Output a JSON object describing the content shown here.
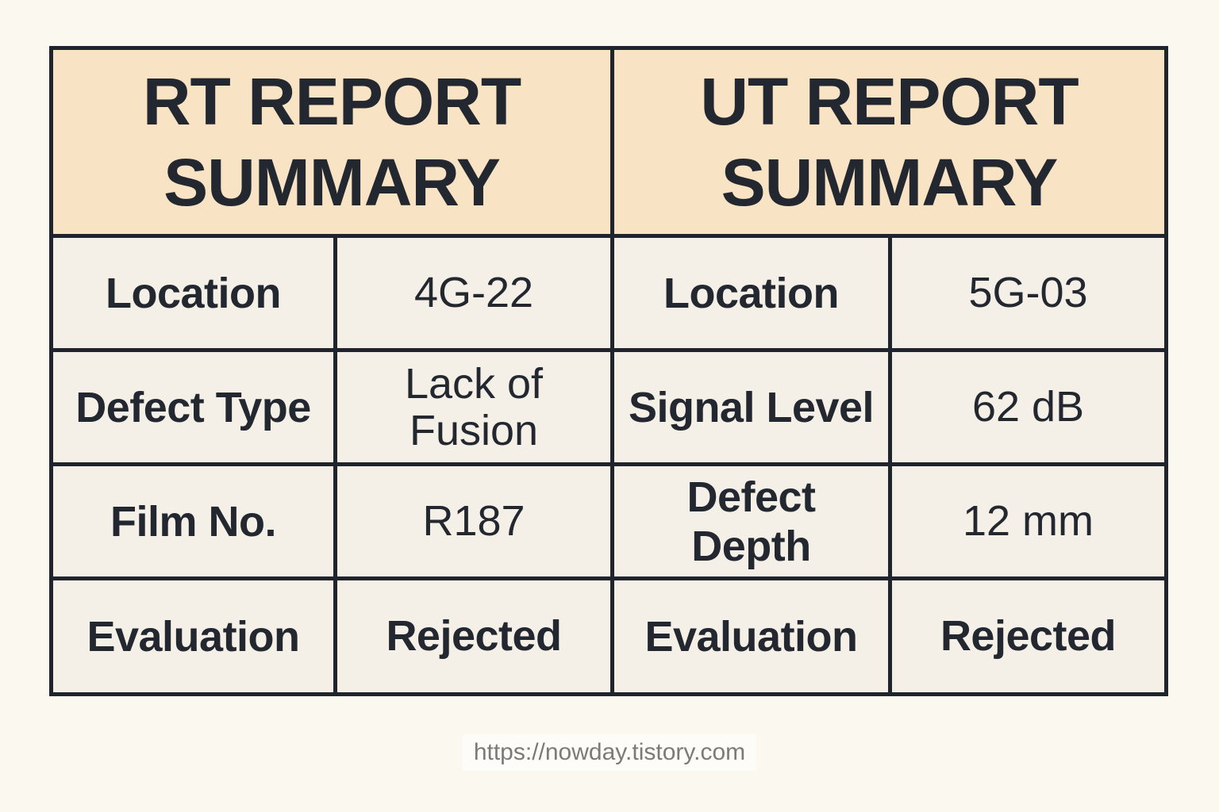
{
  "colors": {
    "page_background": "#fbf8ef",
    "header_background": "#f8e4c5",
    "cell_background": "#f4f0e7",
    "grid_border": "#20242c",
    "text": "#23272f",
    "footer_text": "#7b7a75"
  },
  "tables": [
    {
      "title": "RT REPORT SUMMARY",
      "rows": [
        {
          "label": "Location",
          "value": "4G-22"
        },
        {
          "label": "Defect Type",
          "value": "Lack of Fusion"
        },
        {
          "label": "Film No.",
          "value": "R187"
        },
        {
          "label": "Evaluation",
          "value": "Rejected"
        }
      ]
    },
    {
      "title": "UT REPORT SUMMARY",
      "rows": [
        {
          "label": "Location",
          "value": "5G-03"
        },
        {
          "label": "Signal Level",
          "value": "62 dB"
        },
        {
          "label": "Defect Depth",
          "value": "12 mm"
        },
        {
          "label": "Evaluation",
          "value": "Rejected"
        }
      ]
    }
  ],
  "footer": {
    "url": "https://nowday.tistory.com"
  }
}
